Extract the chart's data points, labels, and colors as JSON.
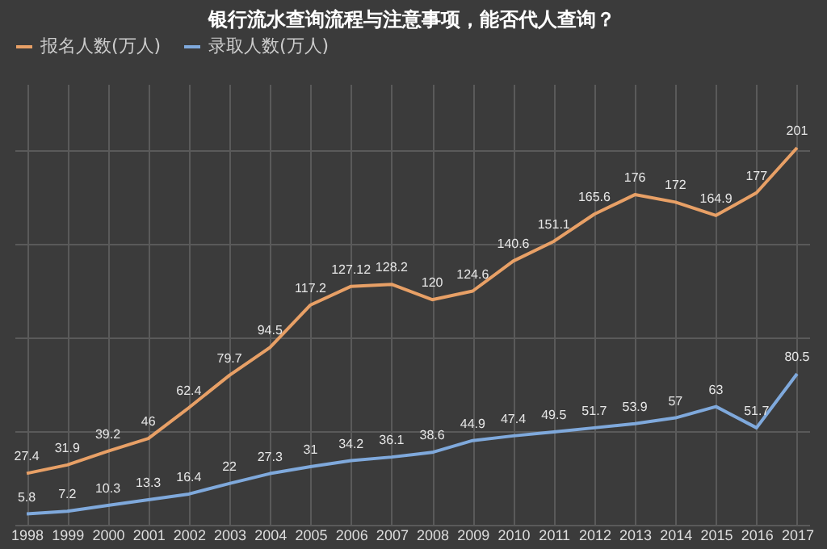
{
  "chart_data": {
    "type": "line",
    "title": "银行流水查询流程与注意事项，能否代人查询？",
    "categories": [
      "1998",
      "1999",
      "2000",
      "2001",
      "2002",
      "2003",
      "2004",
      "2005",
      "2006",
      "2007",
      "2008",
      "2009",
      "2010",
      "2011",
      "2012",
      "2013",
      "2014",
      "2015",
      "2016",
      "2017"
    ],
    "series": [
      {
        "name": "报名人数(万人)",
        "color": "#e8a066",
        "values": [
          27.4,
          31.9,
          39.2,
          46,
          62.4,
          79.7,
          94.5,
          117.2,
          127.12,
          128.2,
          120,
          124.6,
          140.6,
          151.1,
          165.6,
          176,
          172,
          164.9,
          177,
          201
        ]
      },
      {
        "name": "录取人数(万人)",
        "color": "#7fa9dc",
        "values": [
          5.8,
          7.2,
          10.3,
          13.3,
          16.4,
          22,
          27.3,
          31,
          34.2,
          36.1,
          38.6,
          44.9,
          47.4,
          49.5,
          51.7,
          53.9,
          57,
          63,
          51.7,
          80.5
        ]
      }
    ],
    "ylim": [
      0,
      235
    ],
    "yticks": [
      {
        "value": 0,
        "label": null
      },
      {
        "value": 50,
        "label": null
      },
      {
        "value": 100,
        "label": null
      },
      {
        "value": 150,
        "label": null
      },
      {
        "value": 200,
        "label": null
      }
    ],
    "tick_labels": "x",
    "grid": true,
    "legend": "top",
    "data_labels": true,
    "marker": "none",
    "line_style": "solid"
  }
}
